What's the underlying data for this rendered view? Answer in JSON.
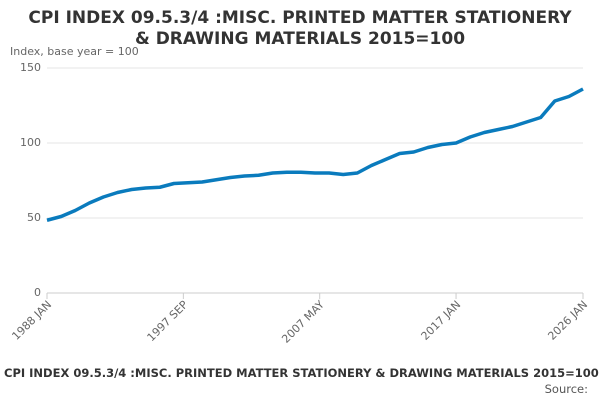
{
  "chart_data": {
    "type": "line",
    "title": "CPI INDEX 09.5.3/4 :MISC. PRINTED MATTER STATIONERY & DRAWING MATERIALS 2015=100",
    "y_label": "Index, base year = 100",
    "footer": "CPI INDEX 09.5.3/4 :MISC. PRINTED MATTER STATIONERY & DRAWING MATERIALS 2015=100",
    "source": "Source:",
    "x": [
      1988,
      1989,
      1990,
      1991,
      1992,
      1993,
      1994,
      1995,
      1996,
      1997,
      1998,
      1999,
      2000,
      2001,
      2002,
      2003,
      2004,
      2005,
      2006,
      2007,
      2008,
      2009,
      2010,
      2011,
      2012,
      2013,
      2014,
      2015,
      2016,
      2017,
      2018,
      2019,
      2020,
      2021,
      2022,
      2023,
      2024,
      2025,
      2026
    ],
    "series": [
      {
        "color": "#0a7bbd",
        "values": [
          48.5,
          51,
          55,
          60,
          64,
          67,
          69,
          70,
          70.5,
          73,
          73.5,
          74,
          75.5,
          77,
          78,
          78.5,
          80,
          80.5,
          80.5,
          80,
          80,
          79,
          80,
          85,
          89,
          93,
          94,
          97,
          99,
          100,
          104,
          107,
          109,
          111,
          114,
          117,
          128,
          131,
          136
        ]
      }
    ],
    "xlim": [
      1988,
      2026
    ],
    "xticks": [
      {
        "value": 1988,
        "label": "1988 JAN"
      },
      {
        "value": 1997.6667,
        "label": "1997 SEP"
      },
      {
        "value": 2007.3333,
        "label": "2007 MAY"
      },
      {
        "value": 2017,
        "label": "2017 JAN"
      },
      {
        "value": 2026,
        "label": "2026 JAN"
      }
    ],
    "ylim": [
      0,
      150
    ],
    "yticks": [
      0,
      50,
      100,
      150
    ],
    "grid": true
  }
}
